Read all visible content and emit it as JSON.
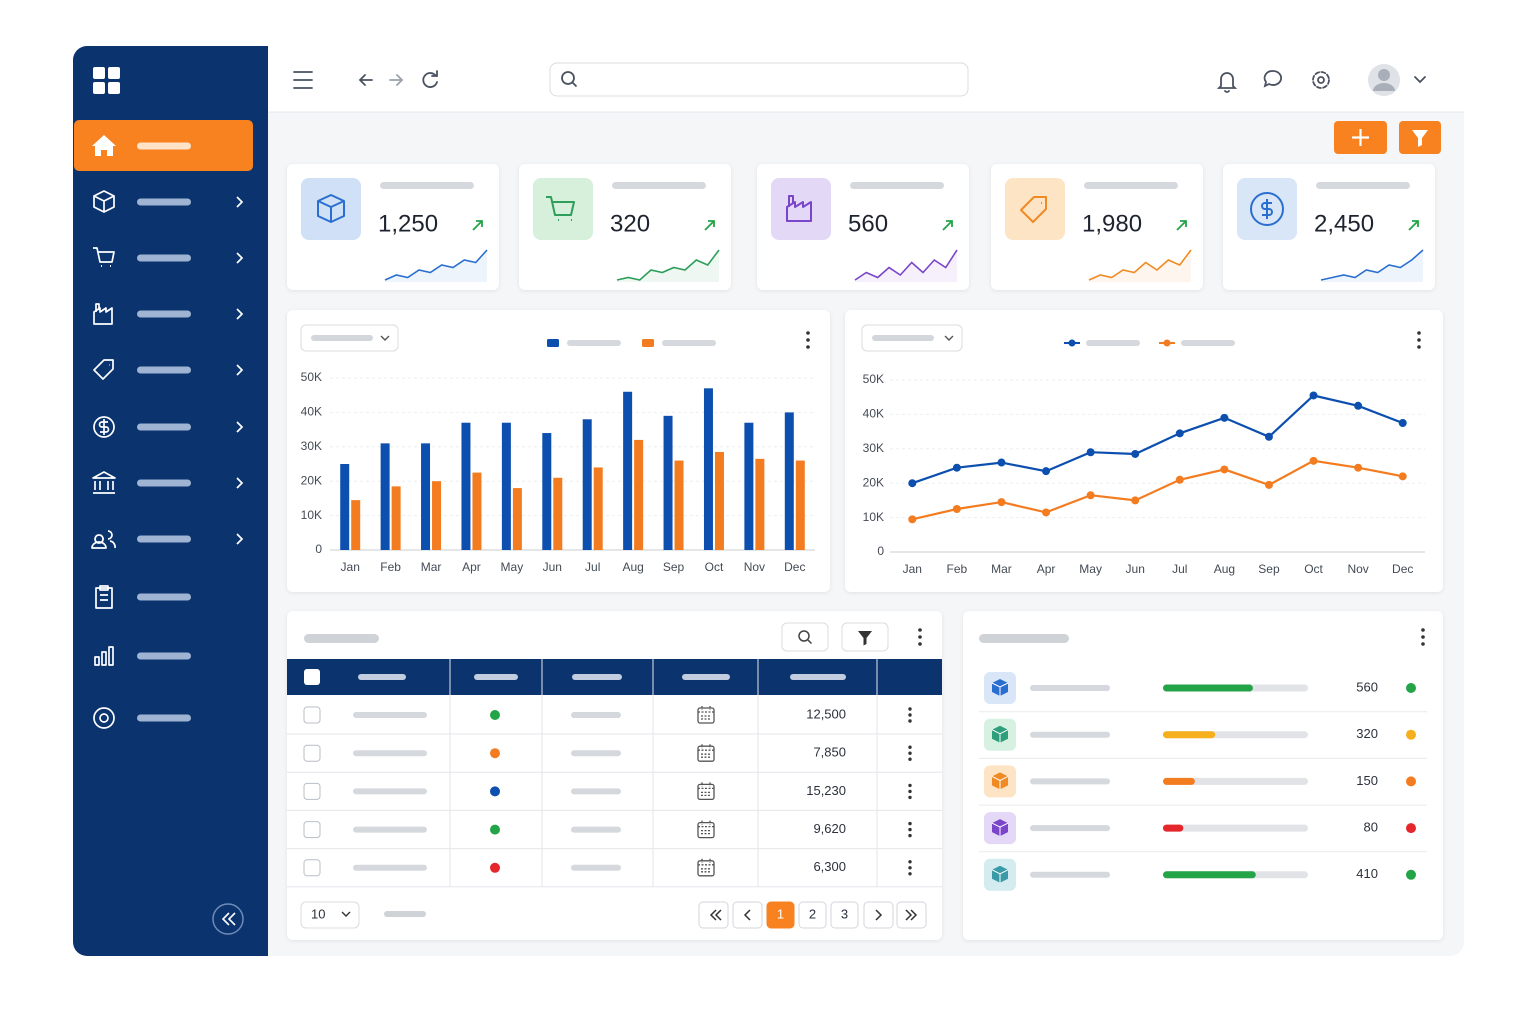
{
  "kpis": [
    {
      "value": "1,250",
      "color": "#2a6fd0",
      "accent": "#cfe0f7",
      "trend": [
        3,
        4,
        3.5,
        5,
        4.5,
        6,
        5.5,
        7,
        6.5,
        9
      ]
    },
    {
      "value": "320",
      "color": "#2e9e5b",
      "accent": "#d6f0dc",
      "trend": [
        3,
        3.5,
        3,
        5,
        4.5,
        5.5,
        5,
        7,
        6,
        9
      ]
    },
    {
      "value": "560",
      "color": "#7a45c9",
      "accent": "#e3d8f6",
      "trend": [
        3,
        4.5,
        3.5,
        5.5,
        4,
        6.5,
        4.5,
        7,
        5.5,
        9
      ]
    },
    {
      "value": "1,980",
      "color": "#f08a24",
      "accent": "#fde4c4",
      "trend": [
        3,
        4,
        3.5,
        5,
        4.5,
        6.5,
        5,
        7,
        6,
        9
      ]
    },
    {
      "value": "2,450",
      "color": "#2a6fd0",
      "accent": "#d8e6f8",
      "trend": [
        3,
        3.5,
        4,
        3.5,
        5,
        4.5,
        6,
        5.5,
        7,
        9
      ]
    }
  ],
  "chart_data": [
    {
      "type": "bar",
      "categories": [
        "Jan",
        "Feb",
        "Mar",
        "Apr",
        "May",
        "Jun",
        "Jul",
        "Aug",
        "Sep",
        "Oct",
        "Nov",
        "Dec"
      ],
      "series": [
        {
          "color": "#0d4fae",
          "values": [
            25000,
            31000,
            31000,
            37000,
            37000,
            34000,
            38000,
            46000,
            39000,
            47000,
            37000,
            40000
          ]
        },
        {
          "color": "#f47c20",
          "values": [
            14500,
            18500,
            20000,
            22500,
            18000,
            21000,
            24000,
            32000,
            26000,
            28500,
            26500,
            26000
          ]
        }
      ],
      "ylim": [
        0,
        50000
      ],
      "yticks": [
        0,
        {
          "value": 10000,
          "label": "10K"
        },
        {
          "value": 20000,
          "label": "20K"
        },
        {
          "value": 30000,
          "label": "30K"
        },
        {
          "value": 40000,
          "label": "40K"
        },
        {
          "value": 50000,
          "label": "50K"
        }
      ],
      "grid": true
    },
    {
      "type": "line",
      "categories": [
        "Jan",
        "Feb",
        "Mar",
        "Apr",
        "May",
        "Jun",
        "Jul",
        "Aug",
        "Sep",
        "Oct",
        "Nov",
        "Dec"
      ],
      "series": [
        {
          "color": "#0d4fae",
          "values": [
            20000,
            24500,
            26000,
            23500,
            29000,
            28500,
            34500,
            39000,
            33500,
            45500,
            42500,
            37500
          ]
        },
        {
          "color": "#f47c20",
          "values": [
            9500,
            12500,
            14500,
            11500,
            16500,
            15000,
            21000,
            24000,
            19500,
            26500,
            24500,
            22000
          ]
        }
      ],
      "ylim": [
        0,
        50000
      ],
      "yticks": [
        0,
        {
          "value": 10000,
          "label": "10K"
        },
        {
          "value": 20000,
          "label": "20K"
        },
        {
          "value": 30000,
          "label": "30K"
        },
        {
          "value": 40000,
          "label": "40K"
        },
        {
          "value": 50000,
          "label": "50K"
        }
      ],
      "grid": true
    }
  ],
  "table": {
    "rows": [
      {
        "status_color": "#22a447",
        "amount": "12,500"
      },
      {
        "status_color": "#f47c20",
        "amount": "7,850"
      },
      {
        "status_color": "#0d4fae",
        "amount": "15,230"
      },
      {
        "status_color": "#22a447",
        "amount": "9,620"
      },
      {
        "status_color": "#e5262b",
        "amount": "6,300"
      }
    ],
    "page_size": 10,
    "pages": [
      1,
      2,
      3
    ],
    "current_page": 1
  },
  "list": {
    "items": [
      {
        "value": 560,
        "progress": 62,
        "color": "#22a447",
        "icon_color": "#2a6fd0",
        "icon_bg": "#d8e6f8"
      },
      {
        "value": 320,
        "progress": 36,
        "color": "#f5b01c",
        "icon_color": "#2e9e7b",
        "icon_bg": "#d6f0e2"
      },
      {
        "value": 150,
        "progress": 22,
        "color": "#f47c20",
        "icon_color": "#f08a24",
        "icon_bg": "#fde4c4"
      },
      {
        "value": 80,
        "progress": 14,
        "color": "#e5262b",
        "icon_color": "#7a45c9",
        "icon_bg": "#e3d8f6"
      },
      {
        "value": 410,
        "progress": 64,
        "color": "#22a447",
        "icon_color": "#3a9aa8",
        "icon_bg": "#d4ecef"
      }
    ]
  }
}
